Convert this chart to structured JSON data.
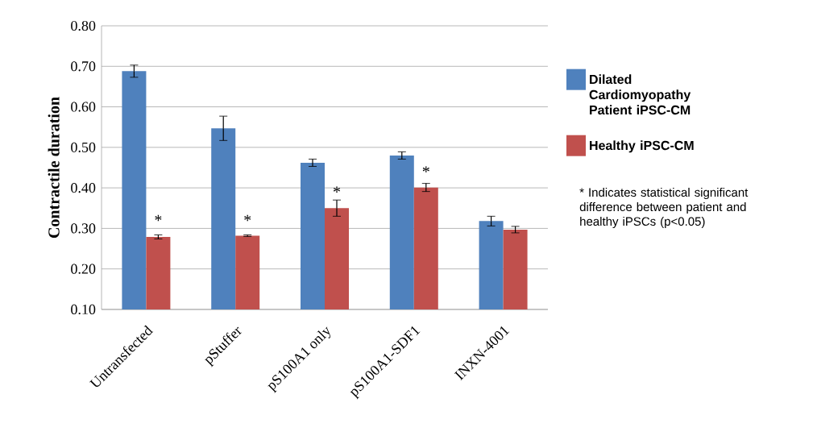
{
  "chart_data": {
    "type": "bar",
    "ylabel": "Contractile duration",
    "categories": [
      "Untransfected",
      "pStuffer",
      "pS100A1 only",
      "pS100A1-SDF1",
      "INXN-4001"
    ],
    "series": [
      {
        "name": "Dilated Cardiomyopathy Patient iPSC-CM",
        "color": "#4f81bd",
        "values": [
          0.688,
          0.547,
          0.462,
          0.48,
          0.318
        ],
        "errors": [
          0.015,
          0.03,
          0.009,
          0.009,
          0.012
        ]
      },
      {
        "name": "Healthy iPSC-CM",
        "color": "#c0504d",
        "values": [
          0.279,
          0.282,
          0.35,
          0.401,
          0.297
        ],
        "errors": [
          0.005,
          0.002,
          0.02,
          0.01,
          0.008
        ]
      }
    ],
    "ylim": [
      0.1,
      0.8
    ],
    "yticks": [
      {
        "value": 0.1,
        "label": "0.10"
      },
      {
        "value": 0.2,
        "label": "0.20"
      },
      {
        "value": 0.3,
        "label": "0.30"
      },
      {
        "value": 0.4,
        "label": "0.40"
      },
      {
        "value": 0.5,
        "label": "0.50"
      },
      {
        "value": 0.6,
        "label": "0.60"
      },
      {
        "value": 0.7,
        "label": "0.70"
      },
      {
        "value": 0.8,
        "label": "0.80"
      }
    ],
    "grid": "y",
    "legend": "right",
    "annotations": [
      {
        "text": "*",
        "x": "Untransfected",
        "y": 0.32
      },
      {
        "text": "*",
        "x": "pStuffer",
        "y": 0.32
      },
      {
        "text": "*",
        "x": "pS100A1 only",
        "y": 0.39
      },
      {
        "text": "*",
        "x": "pS100A1-SDF1",
        "y": 0.44
      },
      "* Indicates statistical significant difference between patient and healthy iPSCs (p<0.05)"
    ]
  }
}
